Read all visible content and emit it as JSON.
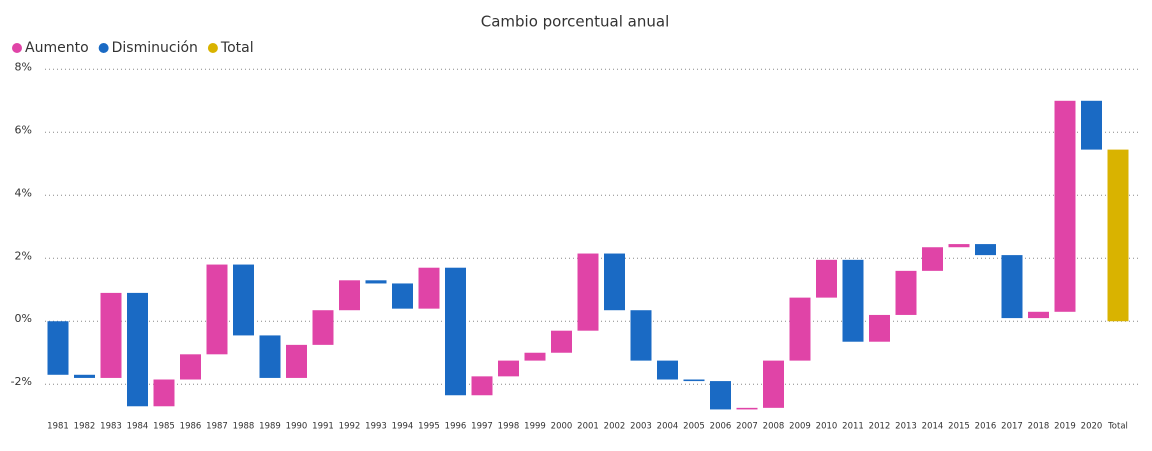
{
  "chart_data": {
    "type": "waterfall",
    "title": "Cambio porcentual anual",
    "legend": [
      {
        "name": "Aumento",
        "color": "#e044a7"
      },
      {
        "name": "Disminución",
        "color": "#1a6ac4"
      },
      {
        "name": "Total",
        "color": "#d9b300"
      }
    ],
    "categories": [
      "1981",
      "1982",
      "1983",
      "1984",
      "1985",
      "1986",
      "1987",
      "1988",
      "1989",
      "1990",
      "1991",
      "1992",
      "1993",
      "1994",
      "1995",
      "1996",
      "1997",
      "1998",
      "1999",
      "2000",
      "2001",
      "2002",
      "2003",
      "2004",
      "2005",
      "2006",
      "2007",
      "2008",
      "2009",
      "2010",
      "2011",
      "2012",
      "2013",
      "2014",
      "2015",
      "2016",
      "2017",
      "2018",
      "2019",
      "2020"
    ],
    "values": [
      -1.7,
      -0.1,
      2.7,
      -3.6,
      0.85,
      0.8,
      2.85,
      -2.25,
      -1.35,
      1.05,
      1.1,
      0.95,
      -0.1,
      -0.8,
      1.3,
      -4.05,
      0.6,
      0.5,
      0.25,
      0.7,
      2.45,
      -1.8,
      -1.6,
      -0.6,
      -0.05,
      -0.9,
      0.05,
      1.5,
      2.0,
      1.2,
      -2.6,
      0.85,
      1.4,
      0.75,
      0.1,
      -0.35,
      -2.0,
      0.2,
      6.7,
      -1.55
    ],
    "total": {
      "label": "Total",
      "value": 5.45
    },
    "ylim": [
      -2.85,
      8.2
    ],
    "yticks": [
      {
        "value": -2,
        "label": "-2%"
      },
      {
        "value": 0,
        "label": "0%"
      },
      {
        "value": 2,
        "label": "2%"
      },
      {
        "value": 4,
        "label": "4%"
      },
      {
        "value": 6,
        "label": "6%"
      },
      {
        "value": 8,
        "label": "8%"
      }
    ],
    "grid": true
  }
}
